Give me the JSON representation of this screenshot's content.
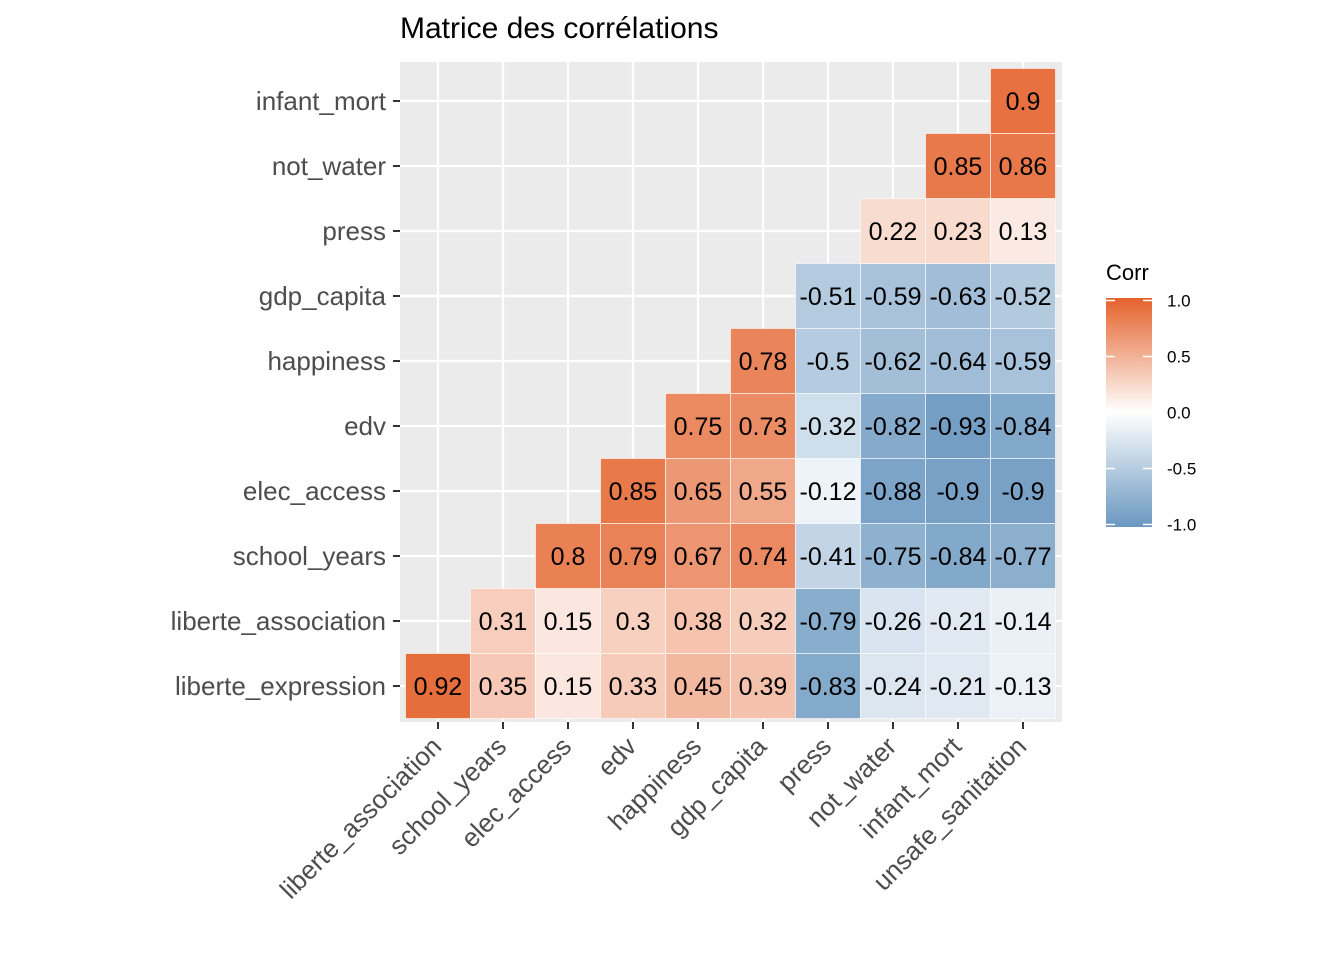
{
  "chart_data": {
    "type": "heatmap",
    "title": "Matrice des corrélations",
    "x_categories": [
      "liberte_association",
      "school_years",
      "elec_access",
      "edv",
      "happiness",
      "gdp_capita",
      "press",
      "not_water",
      "infant_mort",
      "unsafe_sanitation"
    ],
    "y_categories": [
      "liberte_expression",
      "liberte_association",
      "school_years",
      "elec_access",
      "edv",
      "happiness",
      "gdp_capita",
      "press",
      "not_water",
      "infant_mort"
    ],
    "rows": [
      {
        "y": "liberte_expression",
        "values": [
          0.92,
          0.35,
          0.15,
          0.33,
          0.45,
          0.39,
          -0.83,
          -0.24,
          -0.21,
          -0.13
        ]
      },
      {
        "y": "liberte_association",
        "values": [
          null,
          0.31,
          0.15,
          0.3,
          0.38,
          0.32,
          -0.79,
          -0.26,
          -0.21,
          -0.14
        ]
      },
      {
        "y": "school_years",
        "values": [
          null,
          null,
          0.8,
          0.79,
          0.67,
          0.74,
          -0.41,
          -0.75,
          -0.84,
          -0.77
        ]
      },
      {
        "y": "elec_access",
        "values": [
          null,
          null,
          null,
          0.85,
          0.65,
          0.55,
          -0.12,
          -0.88,
          -0.9,
          -0.9
        ]
      },
      {
        "y": "edv",
        "values": [
          null,
          null,
          null,
          null,
          0.75,
          0.73,
          -0.32,
          -0.82,
          -0.93,
          -0.84
        ]
      },
      {
        "y": "happiness",
        "values": [
          null,
          null,
          null,
          null,
          null,
          0.78,
          -0.5,
          -0.62,
          -0.64,
          -0.59
        ]
      },
      {
        "y": "gdp_capita",
        "values": [
          null,
          null,
          null,
          null,
          null,
          null,
          -0.51,
          -0.59,
          -0.63,
          -0.52
        ]
      },
      {
        "y": "press",
        "values": [
          null,
          null,
          null,
          null,
          null,
          null,
          null,
          0.22,
          0.23,
          0.13
        ]
      },
      {
        "y": "not_water",
        "values": [
          null,
          null,
          null,
          null,
          null,
          null,
          null,
          null,
          0.85,
          0.86
        ]
      },
      {
        "y": "infant_mort",
        "values": [
          null,
          null,
          null,
          null,
          null,
          null,
          null,
          null,
          null,
          0.9
        ]
      }
    ],
    "legend": {
      "title": "Corr",
      "ticks": [
        "1.0",
        "0.5",
        "0.0",
        "-0.5",
        "-1.0"
      ],
      "tick_values": [
        1.0,
        0.5,
        0.0,
        -0.5,
        -1.0
      ],
      "range": [
        -1,
        1
      ],
      "placement": "right"
    },
    "colors": {
      "low": "#6a97c0",
      "mid": "#ffffff",
      "high": "#e4612b",
      "panel": "#ebebeb",
      "grid": "#ffffff"
    },
    "grid": true
  }
}
